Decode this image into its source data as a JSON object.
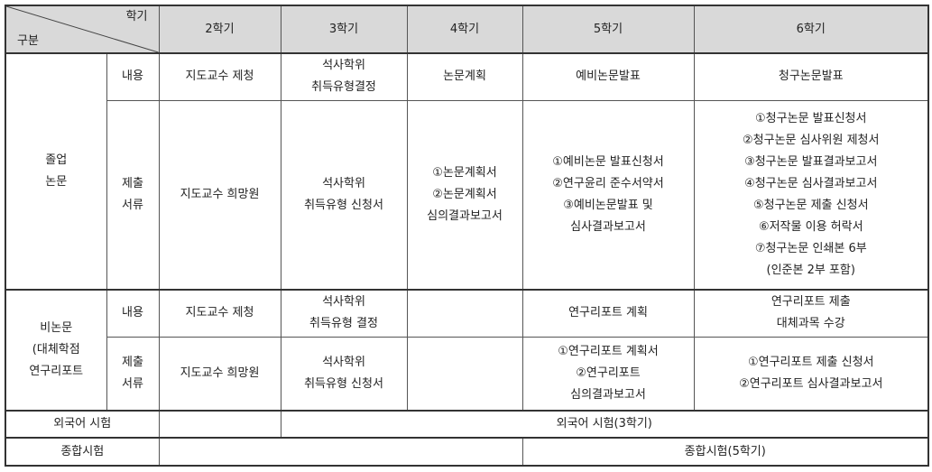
{
  "header": {
    "corner_top": "학기",
    "corner_bottom": "구분",
    "semesters": [
      "2학기",
      "3학기",
      "4학기",
      "5학기",
      "6학기"
    ]
  },
  "sub_labels": {
    "content": "내용",
    "documents": [
      "제출",
      "서류"
    ]
  },
  "thesis": {
    "label": [
      "졸업",
      "논문"
    ],
    "content": [
      "지도교수 제청",
      [
        "석사학위",
        "취득유형결정"
      ],
      "논문계획",
      "예비논문발표",
      "청구논문발표"
    ],
    "documents": [
      [
        "지도교수 희망원"
      ],
      [
        "석사학위",
        "취득유형 신청서"
      ],
      [
        "①논문계획서",
        "②논문계획서",
        "심의결과보고서"
      ],
      [
        "①예비논문 발표신청서",
        "②연구윤리 준수서약서",
        "③예비논문발표 및",
        "심사결과보고서"
      ],
      [
        "①청구논문 발표신청서",
        "②청구논문 심사위원 제청서",
        "③청구논문 발표결과보고서",
        "④청구논문 심사결과보고서",
        "⑤청구논문 제출 신청서",
        "⑥저작물 이용 허락서",
        "⑦청구논문 인쇄본 6부",
        "(인준본 2부 포함)"
      ]
    ]
  },
  "non_thesis": {
    "label": [
      "비논문",
      "(대체학점",
      "연구리포트"
    ],
    "content": [
      [
        "지도교수 제청"
      ],
      [
        "석사학위",
        "취득유형 결정"
      ],
      [],
      [
        "연구리포트 계획"
      ],
      [
        "연구리포트 제출",
        "대체과목 수강"
      ]
    ],
    "documents": [
      [
        "지도교수 희망원"
      ],
      [
        "석사학위",
        "취득유형 신청서"
      ],
      [],
      [
        "①연구리포트 계획서",
        "②연구리포트",
        "심의결과보고서"
      ],
      [
        "①연구리포트 제출 신청서",
        "②연구리포트 심사결과보고서"
      ]
    ]
  },
  "foreign_exam": {
    "label": "외국어 시험",
    "value": "외국어 시험(3학기)"
  },
  "comprehensive_exam": {
    "label": "종합시험",
    "value": "종합시험(5학기)"
  },
  "colors": {
    "header_bg": "#d9d9d9",
    "border": "#555555"
  }
}
